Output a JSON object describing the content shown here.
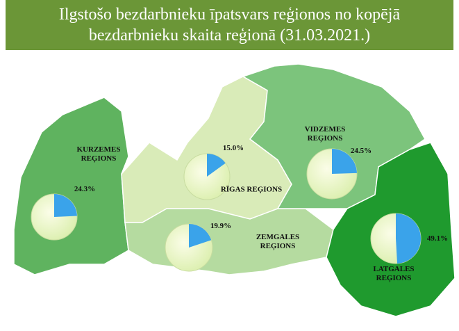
{
  "title": "Ilgstošo bezdarbnieku īpatsvars reģionos no kopējā bezdarbnieku skaita reģionā (31.03.2021.)",
  "regions": [
    {
      "name": "KURZEMES REĢIONS",
      "value": 24.3,
      "value_label": "24.3%"
    },
    {
      "name": "RĪGAS REĢIONS",
      "value": 15.0,
      "value_label": "15.0%"
    },
    {
      "name": "VIDZEMES REĢIONS",
      "value": 24.5,
      "value_label": "24.5%"
    },
    {
      "name": "ZEMGALES REĢIONS",
      "value": 19.9,
      "value_label": "19.9%"
    },
    {
      "name": "LATGALES REĢIONS",
      "value": 49.1,
      "value_label": "49.1%"
    }
  ]
}
